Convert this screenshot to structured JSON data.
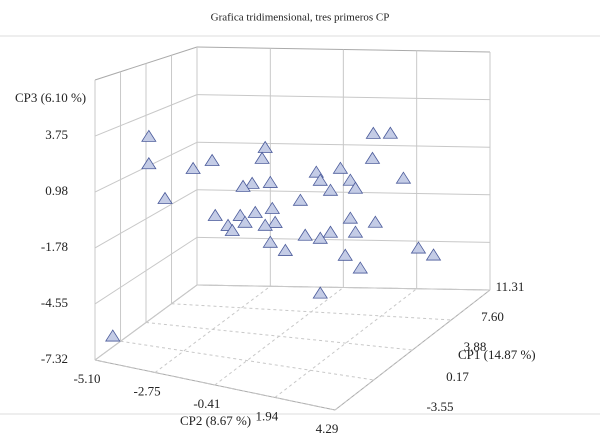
{
  "chart_data": {
    "type": "scatter3d",
    "title": "Grafica tridimensional, tres primeros CP",
    "xlabel": "CP1 (14.87 %)",
    "ylabel": "CP2 (8.67 %)",
    "zlabel": "CP3 (6.10 %)",
    "xlim": [
      -3.55,
      11.31
    ],
    "xticks": [
      -3.55,
      0.17,
      3.88,
      {
        "value": 7.6,
        "label": "7.60"
      },
      11.31
    ],
    "ylim": [
      -5.1,
      4.29
    ],
    "yticks": [
      {
        "value": -5.1,
        "label": "-5.10"
      },
      -2.75,
      -0.41,
      1.94,
      4.29
    ],
    "zlim": [
      -7.32,
      6.52
    ],
    "zticks": [
      -7.32,
      -4.55,
      -1.78,
      0.98,
      3.75
    ],
    "color": "#c4cce6",
    "x": [
      3.88,
      3.88,
      3.88,
      -1.5,
      3.88,
      3.88,
      3.88,
      3.88,
      3.88,
      3.88,
      3.88,
      3.88,
      3.88,
      3.88,
      3.88,
      3.88,
      3.88,
      3.88,
      3.88,
      3.88,
      3.88,
      3.88,
      3.88,
      3.88,
      3.88,
      3.88,
      3.88,
      3.88,
      3.88,
      3.88,
      3.88,
      3.88,
      3.88,
      3.88,
      3.88,
      3.88,
      3.88,
      3.88,
      3.88,
      3.88,
      3.88,
      3.88,
      3.88,
      3.88
    ],
    "y": [
      -5.0,
      -5.0,
      -4.43,
      -4.96,
      -3.44,
      -2.77,
      -0.9,
      -1.01,
      -1.36,
      -0.72,
      -1.68,
      -2.66,
      -2.21,
      -1.78,
      -1.25,
      -0.65,
      -0.55,
      -0.9,
      -1.61,
      -2.06,
      -0.72,
      -0.19,
      0.34,
      0.9,
      1.04,
      1.75,
      2.1,
      2.28,
      1.4,
      0.51,
      1.04,
      1.4,
      2.1,
      2.28,
      2.98,
      1.92,
      2.45,
      2.91,
      3.51,
      2.88,
      3.97,
      4.5,
      5.03,
      1.04
    ],
    "z": [
      2.64,
      1.18,
      -0.59,
      -6.6,
      1.17,
      1.7,
      2.69,
      2.09,
      0.7,
      0.85,
      0.49,
      -1.22,
      -1.68,
      -1.08,
      -0.84,
      -0.53,
      -1.26,
      -1.47,
      -1.42,
      -1.93,
      -2.35,
      -2.7,
      0.06,
      1.65,
      1.24,
      1.99,
      1.41,
      1.01,
      0.76,
      -1.78,
      -1.86,
      -1.48,
      -0.62,
      -1.34,
      -0.7,
      -2.63,
      -3.23,
      4.04,
      4.14,
      2.7,
      1.81,
      -1.84,
      -2.13,
      -4.79
    ]
  }
}
